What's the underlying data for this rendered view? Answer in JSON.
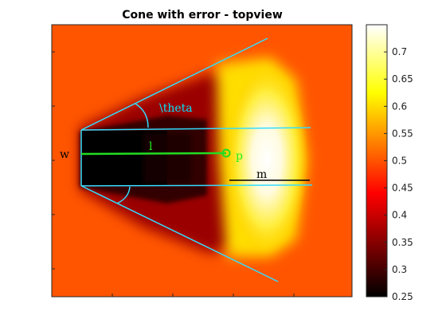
{
  "chart_data": {
    "type": "heatmap",
    "title": "Cone with error - topview",
    "xlabel": "",
    "ylabel": "",
    "colormap": "hot",
    "colorbar": {
      "min": 0.25,
      "max": 0.75,
      "ticks": [
        0.7,
        0.65,
        0.6,
        0.55,
        0.5,
        0.45,
        0.4,
        0.35,
        0.3,
        0.25
      ],
      "tick_labels": [
        "0.7",
        "0.65",
        "0.6",
        "0.55",
        "0.5",
        "0.45",
        "0.4",
        "0.35",
        "0.3",
        "0.25"
      ]
    },
    "field": {
      "background_value": 0.5,
      "dark_rect_value": 0.28,
      "peak_value": 0.75
    },
    "annotations": [
      {
        "label": "\\theta",
        "color": "#00e5ff"
      },
      {
        "label": "l",
        "color": "#22ee22"
      },
      {
        "label": "p",
        "color": "#22ee22"
      },
      {
        "label": "w",
        "color": "#000000"
      },
      {
        "label": "m",
        "color": "#000000"
      }
    ],
    "line_colors": {
      "cone": "#33ddff",
      "length": "#22dd22",
      "measure": "#000000"
    },
    "grid": false
  }
}
